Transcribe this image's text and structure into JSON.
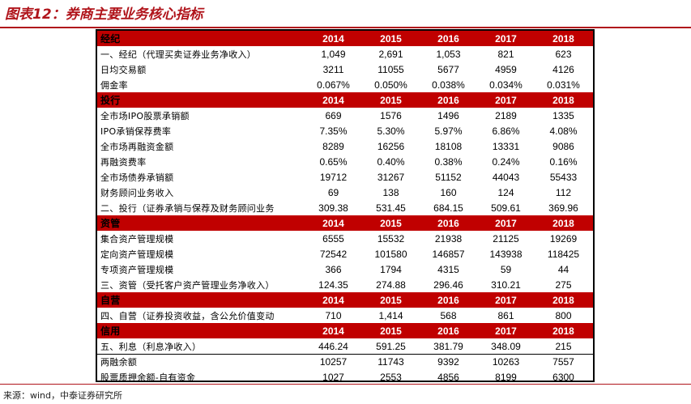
{
  "title": "图表12：券商主要业务核心指标",
  "years": [
    "2014",
    "2015",
    "2016",
    "2017",
    "2018"
  ],
  "sections": [
    {
      "header": "经纪",
      "rows": [
        {
          "label": "一、经纪（代理买卖证券业务净收入）",
          "values": [
            "1,049",
            "2,691",
            "1,053",
            "821",
            "623"
          ]
        },
        {
          "label": "日均交易额",
          "values": [
            "3211",
            "11055",
            "5677",
            "4959",
            "4126"
          ]
        },
        {
          "label": "佣金率",
          "values": [
            "0.067%",
            "0.050%",
            "0.038%",
            "0.034%",
            "0.031%"
          ]
        }
      ]
    },
    {
      "header": "投行",
      "rows": [
        {
          "label": "全市场IPO股票承销额",
          "values": [
            "669",
            "1576",
            "1496",
            "2189",
            "1335"
          ]
        },
        {
          "label": "IPO承销保荐费率",
          "values": [
            "7.35%",
            "5.30%",
            "5.97%",
            "6.86%",
            "4.08%"
          ]
        },
        {
          "label": "全市场再融资金额",
          "values": [
            "8289",
            "16256",
            "18108",
            "13331",
            "9086"
          ]
        },
        {
          "label": "再融资费率",
          "values": [
            "0.65%",
            "0.40%",
            "0.38%",
            "0.24%",
            "0.16%"
          ]
        },
        {
          "label": "全市场债券承销额",
          "values": [
            "19712",
            "31267",
            "51152",
            "44043",
            "55433"
          ]
        },
        {
          "label": "财务顾问业务收入",
          "values": [
            "69",
            "138",
            "160",
            "124",
            "112"
          ]
        },
        {
          "label": "二、投行（证券承销与保荐及财务顾问业务",
          "values": [
            "309.38",
            "531.45",
            "684.15",
            "509.61",
            "369.96"
          ]
        }
      ]
    },
    {
      "header": "资管",
      "rows": [
        {
          "label": "集合资产管理规模",
          "values": [
            "6555",
            "15532",
            "21938",
            "21125",
            "19269"
          ]
        },
        {
          "label": "定向资产管理规模",
          "values": [
            "72542",
            "101580",
            "146857",
            "143938",
            "118425"
          ]
        },
        {
          "label": "专项资产管理规模",
          "values": [
            "366",
            "1794",
            "4315",
            "59",
            "44"
          ]
        },
        {
          "label": "三、资管（受托客户资产管理业务净收入）",
          "values": [
            "124.35",
            "274.88",
            "296.46",
            "310.21",
            "275"
          ]
        }
      ]
    },
    {
      "header": "自营",
      "rows": [
        {
          "label": "四、自营（证券投资收益，含公允价值变动",
          "values": [
            "710",
            "1,414",
            "568",
            "861",
            "800"
          ]
        }
      ]
    },
    {
      "header": "信用",
      "rows": [
        {
          "label": "五、利息（利息净收入）",
          "values": [
            "446.24",
            "591.25",
            "381.79",
            "348.09",
            "215"
          ]
        },
        {
          "label": "两融余额",
          "values": [
            "10257",
            "11743",
            "9392",
            "10263",
            "7557"
          ]
        },
        {
          "label": "股票质押余额-自有资金",
          "values": [
            "1027",
            "2553",
            "4856",
            "8199",
            "6300"
          ]
        }
      ]
    }
  ],
  "source": "来源：wind，中泰证券研究所"
}
